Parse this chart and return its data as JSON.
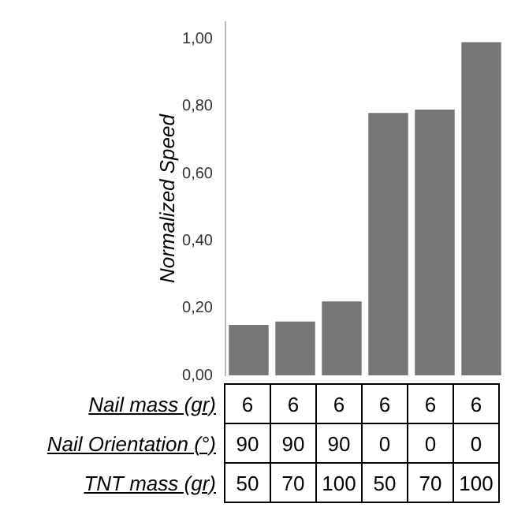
{
  "chart_data": {
    "type": "bar",
    "ylabel": "Normalized Speed",
    "categories": [
      null,
      null,
      null,
      null,
      null,
      null
    ],
    "values": [
      0.15,
      0.16,
      0.22,
      0.78,
      0.79,
      0.99
    ],
    "color": "#767676",
    "ylim": [
      0,
      1.05
    ],
    "yticks": [
      {
        "value": 0,
        "label": "0,00"
      },
      {
        "value": 0.2,
        "label": "0,20"
      },
      {
        "value": 0.4,
        "label": "0,40"
      },
      {
        "value": 0.6,
        "label": "0,60"
      },
      {
        "value": 0.8,
        "label": "0,80"
      },
      {
        "value": 1,
        "label": "1,00"
      }
    ],
    "grid": false,
    "legend": false,
    "annotations": [
      "Nail mass (gr)",
      "6",
      "6",
      "6",
      "6",
      "6",
      "6",
      "Nail Orientation (°)",
      "90",
      "90",
      "90",
      "0",
      "0",
      "0",
      "TNT mass (gr)",
      "50",
      "70",
      "100",
      "50",
      "70",
      "100"
    ]
  }
}
